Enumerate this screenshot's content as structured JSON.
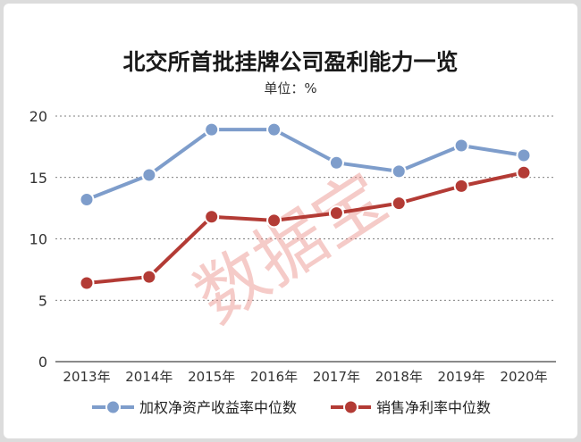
{
  "chart_data": {
    "type": "line",
    "title": "北交所首批挂牌公司盈利能力一览",
    "subtitle": "单位：%",
    "categories": [
      "2013年",
      "2014年",
      "2015年",
      "2016年",
      "2017年",
      "2018年",
      "2019年",
      "2020年"
    ],
    "series": [
      {
        "name": "加权净资产收益率中位数",
        "values": [
          13.2,
          15.2,
          18.9,
          18.9,
          16.2,
          15.5,
          17.6,
          16.8
        ],
        "color": "#7e9dcb"
      },
      {
        "name": "销售净利率中位数",
        "values": [
          6.4,
          6.9,
          11.8,
          11.5,
          12.1,
          12.9,
          14.3,
          15.4
        ],
        "color": "#b33b35"
      }
    ],
    "yticks": [
      0,
      5,
      10,
      15,
      20
    ],
    "ylim": [
      0,
      20
    ],
    "grid": true,
    "legend_position": "bottom",
    "watermark": "数据宝"
  }
}
